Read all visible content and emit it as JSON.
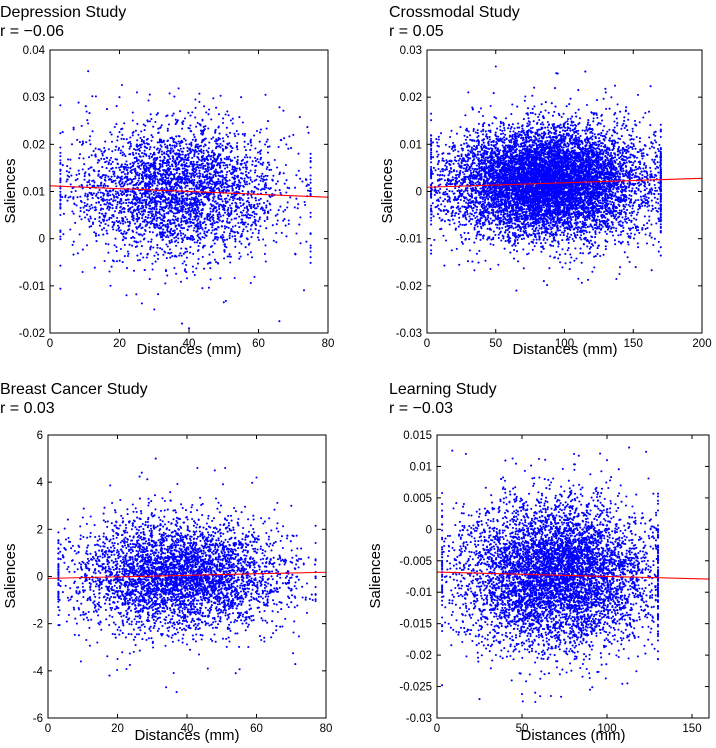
{
  "colors": {
    "points": "#0000ff",
    "fit_line": "#ff0000",
    "axes": "#000000"
  },
  "chart_data": [
    {
      "type": "scatter",
      "title": "Depression Study",
      "subtitle": "r = −0.06",
      "xlabel": "Distances (mm)",
      "ylabel": "Saliences",
      "xlim": [
        0,
        80
      ],
      "ylim": [
        -0.02,
        0.04
      ],
      "xticks": [
        0,
        20,
        40,
        60,
        80
      ],
      "xtick_labels": [
        "0",
        "20",
        "40",
        "60",
        "80"
      ],
      "yticks": [
        -0.02,
        -0.01,
        0,
        0.01,
        0.02,
        0.03,
        0.04
      ],
      "ytick_labels": [
        "-0.02",
        "-0.01",
        "0",
        "0.01",
        "0.02",
        "0.03",
        "0.04"
      ],
      "fit_line": {
        "x": [
          0,
          80
        ],
        "y": [
          0.0112,
          0.0088
        ]
      },
      "point_cloud": {
        "n_points": 3500,
        "x_mean": 37,
        "x_sd": 15,
        "x_range": [
          3,
          75
        ],
        "y_mean": 0.0103,
        "y_sd": 0.0068,
        "y_range": [
          -0.02,
          0.036
        ]
      },
      "sample_points": [
        [
          11,
          0.0355
        ],
        [
          20,
          0.03
        ],
        [
          25,
          0.031
        ],
        [
          43,
          0.029
        ],
        [
          55,
          0.03
        ],
        [
          62,
          0.0305
        ],
        [
          38,
          -0.018
        ],
        [
          30,
          -0.015
        ],
        [
          66,
          -0.0175
        ],
        [
          40,
          -0.019
        ],
        [
          22,
          -0.012
        ],
        [
          50,
          -0.0135
        ],
        [
          70,
          0.022
        ],
        [
          74,
          0.009
        ]
      ]
    },
    {
      "type": "scatter",
      "title": "Crossmodal Study",
      "subtitle": "r = 0.05",
      "xlabel": "Distances (mm)",
      "ylabel": "Saliences",
      "xlim": [
        0,
        200
      ],
      "ylim": [
        -0.03,
        0.03
      ],
      "xticks": [
        0,
        50,
        100,
        150,
        200
      ],
      "xtick_labels": [
        "0",
        "50",
        "100",
        "150",
        "200"
      ],
      "yticks": [
        -0.03,
        -0.02,
        -0.01,
        0,
        0.01,
        0.02,
        0.03
      ],
      "ytick_labels": [
        "-0.03",
        "-0.02",
        "-0.01",
        "0",
        "0.01",
        "0.02",
        "0.03"
      ],
      "fit_line": {
        "x": [
          0,
          200
        ],
        "y": [
          0.0009,
          0.0028
        ]
      },
      "point_cloud": {
        "n_points": 9000,
        "x_mean": 88,
        "x_sd": 36,
        "x_range": [
          3,
          170
        ],
        "y_mean": 0.0019,
        "y_sd": 0.0058,
        "y_range": [
          -0.021,
          0.027
        ]
      },
      "sample_points": [
        [
          50,
          0.0265
        ],
        [
          95,
          0.025
        ],
        [
          110,
          0.0215
        ],
        [
          130,
          0.021
        ],
        [
          30,
          0.021
        ],
        [
          65,
          -0.021
        ],
        [
          85,
          -0.019
        ],
        [
          110,
          -0.0185
        ],
        [
          140,
          -0.0175
        ],
        [
          160,
          -0.011
        ],
        [
          168,
          0.009
        ],
        [
          5,
          0.005
        ]
      ]
    },
    {
      "type": "scatter",
      "title": "Breast Cancer Study",
      "subtitle": "r = 0.03",
      "xlabel": "Distances (mm)",
      "ylabel": "Saliences",
      "xlim": [
        0,
        80
      ],
      "ylim": [
        -6,
        6
      ],
      "xticks": [
        0,
        20,
        40,
        60,
        80
      ],
      "xtick_labels": [
        "0",
        "20",
        "40",
        "60",
        "80"
      ],
      "yticks": [
        -6,
        -4,
        -2,
        0,
        2,
        4,
        6
      ],
      "ytick_labels": [
        "-6",
        "-4",
        "-2",
        "0",
        "2",
        "4",
        "6"
      ],
      "fit_line": {
        "x": [
          0,
          80
        ],
        "y": [
          -0.08,
          0.18
        ]
      },
      "point_cloud": {
        "n_points": 4200,
        "x_mean": 38,
        "x_sd": 15,
        "x_range": [
          3,
          77
        ],
        "y_mean": 0.05,
        "y_sd": 1.2,
        "y_range": [
          -5,
          5
        ]
      },
      "sample_points": [
        [
          31,
          5.0
        ],
        [
          27,
          4.4
        ],
        [
          43,
          4.6
        ],
        [
          48,
          4.5
        ],
        [
          51,
          4.6
        ],
        [
          60,
          4.2
        ],
        [
          34,
          -4.7
        ],
        [
          37,
          -4.9
        ],
        [
          54,
          -4.1
        ],
        [
          46,
          -3.9
        ],
        [
          20,
          -3.5
        ],
        [
          70,
          3.0
        ],
        [
          75,
          0.8
        ]
      ]
    },
    {
      "type": "scatter",
      "title": "Learning Study",
      "subtitle": "r = −0.03",
      "xlabel": "Distances (mm)",
      "ylabel": "Saliences",
      "xlim": [
        0,
        160
      ],
      "ylim": [
        -0.03,
        0.015
      ],
      "xticks": [
        0,
        50,
        100,
        150
      ],
      "xtick_labels": [
        "0",
        "50",
        "100",
        "150"
      ],
      "yticks": [
        -0.03,
        -0.025,
        -0.02,
        -0.015,
        -0.01,
        -0.005,
        0,
        0.005,
        0.01,
        0.015
      ],
      "ytick_labels": [
        "-0.03",
        "-0.025",
        "-0.02",
        "-0.015",
        "-0.01",
        "-0.005",
        "0",
        "0.005",
        "0.01",
        "0.015"
      ],
      "fit_line": {
        "x": [
          0,
          160
        ],
        "y": [
          -0.0068,
          -0.0079
        ]
      },
      "point_cloud": {
        "n_points": 6000,
        "x_mean": 70,
        "x_sd": 28,
        "x_range": [
          3,
          130
        ],
        "y_mean": -0.0072,
        "y_sd": 0.0058,
        "y_range": [
          -0.028,
          0.013
        ]
      },
      "sample_points": [
        [
          9,
          0.0125
        ],
        [
          17,
          0.012
        ],
        [
          113,
          0.013
        ],
        [
          60,
          0.0112
        ],
        [
          100,
          0.011
        ],
        [
          25,
          -0.027
        ],
        [
          50,
          -0.0262
        ],
        [
          67,
          -0.0265
        ],
        [
          90,
          -0.0255
        ],
        [
          112,
          -0.0245
        ],
        [
          128,
          -0.019
        ],
        [
          130,
          0.003
        ]
      ]
    }
  ]
}
